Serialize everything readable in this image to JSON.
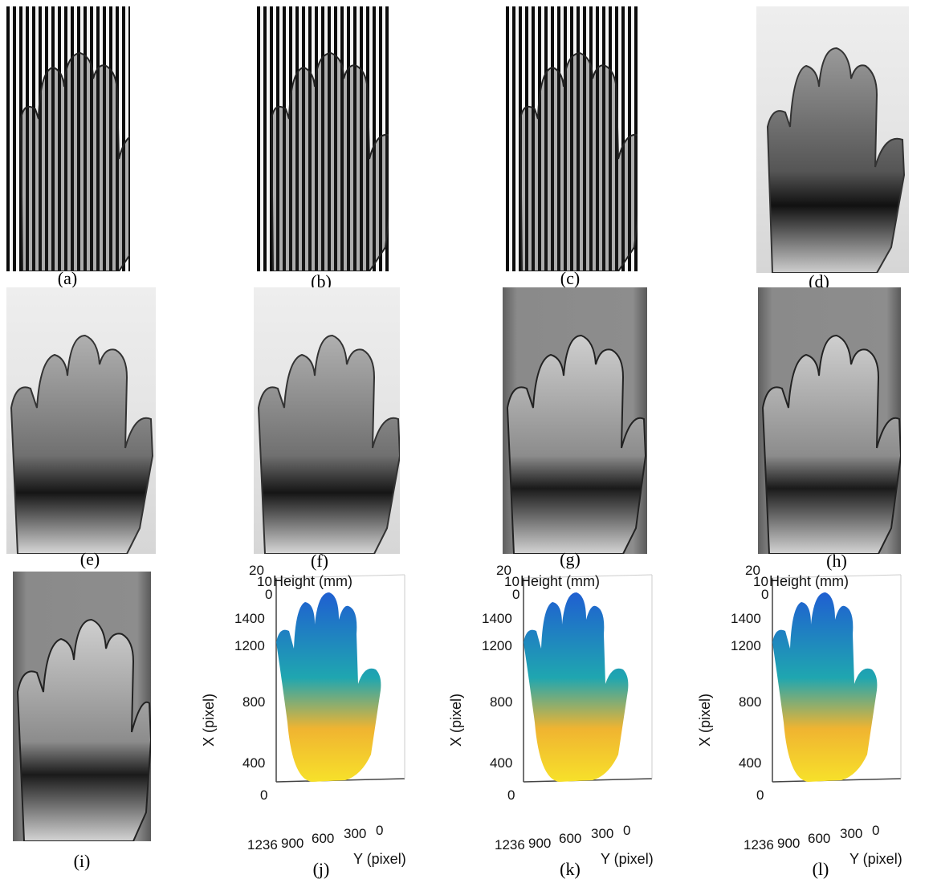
{
  "captions": [
    "(a)",
    "(b)",
    "(c)",
    "(d)",
    "(e)",
    "(f)",
    "(g)",
    "(h)",
    "(i)",
    "(j)",
    "(k)",
    "(l)"
  ],
  "plots": [
    {
      "z_ticks": [
        "20",
        "10",
        "0"
      ],
      "z_label": "Height (mm)",
      "x_label": "X (pixel)",
      "y_label": "Y (pixel)",
      "x_ticks": [
        "1400",
        "1200",
        "800",
        "400",
        "0"
      ],
      "y_ticks": [
        "1236",
        "900",
        "600",
        "300",
        "0"
      ]
    }
  ],
  "colors": {
    "high": "#1f5fd1",
    "mid": "#1fa6b0",
    "low": "#f7e12a",
    "warm": "#f0b431"
  }
}
